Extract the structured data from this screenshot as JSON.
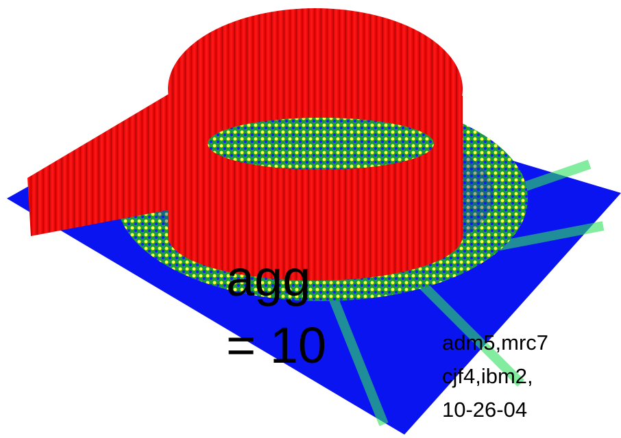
{
  "slide": {
    "title_fragment": "agg",
    "subtitle_fragment": "= 10",
    "credits": [
      "adm5,mrc7",
      "cjf4,ibm2,",
      "10-26-04"
    ]
  }
}
